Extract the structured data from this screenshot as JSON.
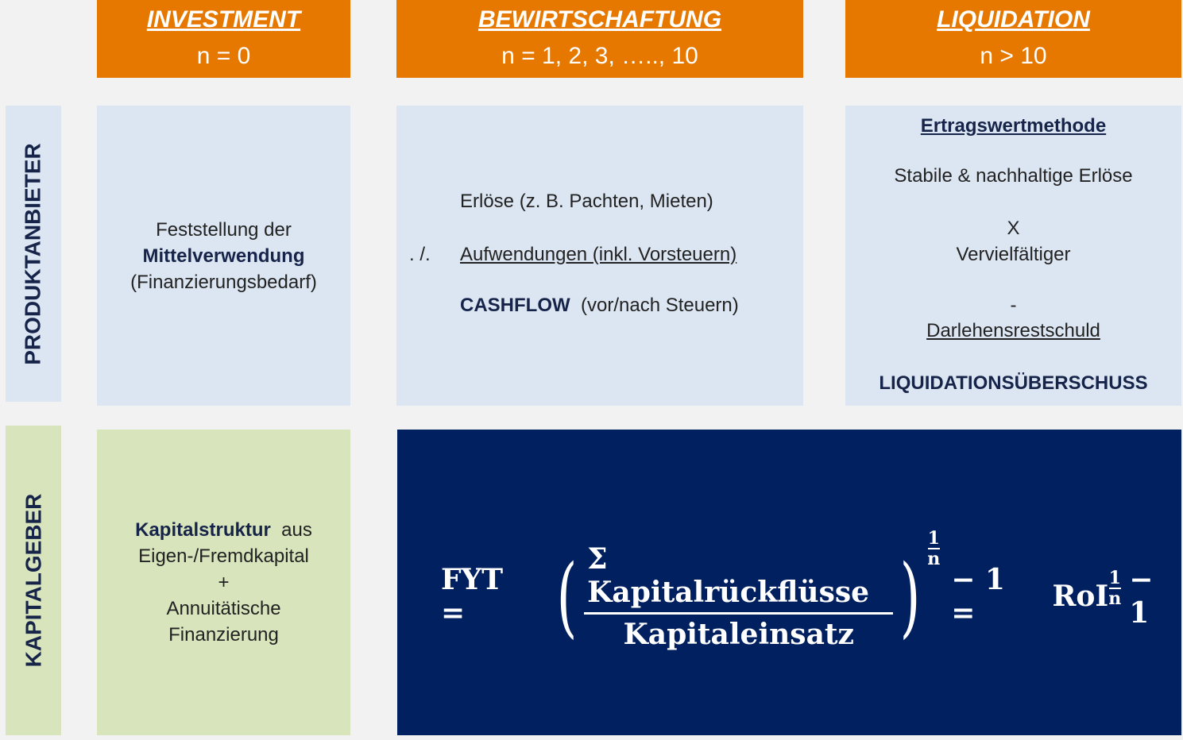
{
  "headers": [
    {
      "title": "INVESTMENT",
      "sub": "n = 0"
    },
    {
      "title": "BEWIRTSCHAFTUNG",
      "sub": "n = 1, 2, 3, ….., 10"
    },
    {
      "title": "LIQUIDATION",
      "sub": "n > 10"
    }
  ],
  "rows": {
    "produktanbieter": "PRODUKTANBIETER",
    "kapitalgeber": "KAPITALGEBER"
  },
  "investment": {
    "line1": "Feststellung  der",
    "line2": "Mittelverwendung",
    "line3": "(Finanzierungsbedarf)"
  },
  "bewirtschaftung": {
    "erloese": "Erlöse  (z. B. Pachten,  Mieten)",
    "minus": ". /.",
    "aufwendungen": "Aufwendungen  (inkl. Vorsteuern)",
    "cashflow": "CASHFLOW",
    "cashflow_suffix": "(vor/nach  Steuern)"
  },
  "liquidation": {
    "method": "Ertragswertmethode",
    "line1": "Stabile  & nachhaltige  Erlöse",
    "times": "X",
    "factor": "Vervielfältiger",
    "minus": "-",
    "debt": "Darlehensrestschuld",
    "result": "LIQUIDATIONSÜBERSCHUSS"
  },
  "kapital": {
    "bold": "Kapitalstruktur",
    "aus": "aus",
    "line2": "Eigen-/Fremdkapital",
    "plus": "+",
    "line3": "Annuitätische",
    "line4": "Finanzierung"
  },
  "formula": {
    "lhs": "FYT =",
    "numerator": "Σ Kapitalrückflüsse",
    "denominator": "Kapitaleinsatz",
    "exp_num": "1",
    "exp_den": "n",
    "minus_one": "− 1 =",
    "roi": "RoI",
    "tail": "− 1"
  },
  "colors": {
    "header": "#e67800",
    "light_blue": "#dce6f2",
    "light_green": "#d8e4bc",
    "navy": "#002060"
  }
}
